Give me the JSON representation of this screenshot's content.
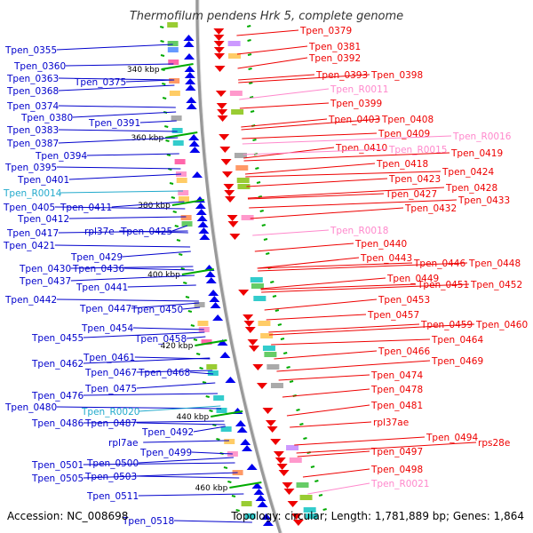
{
  "title": "Thermofilum pendens Hrk 5, complete genome",
  "accession": "Accession: NC_008698",
  "topology": "Topology: circular; Length: 1,781,889 bp; Genes: 1,864",
  "colors": {
    "forward_label": "#0000cc",
    "reverse_label": "#ee0000",
    "rna_label": "#ff88cc",
    "trna_label": "#22aacc",
    "backbone": "#999999",
    "kbp_tick": "#00aa00"
  },
  "kbp_marks": [
    "340 kbp",
    "360 kbp",
    "380 kbp",
    "400 kbp",
    "420 kbp",
    "440 kbp",
    "460 kbp"
  ],
  "left_labels": [
    "Tpen_0355",
    "Tpen_0360",
    "Tpen_0363",
    "Tpen_0368",
    "Tpen_0375",
    "Tpen_0374",
    "Tpen_0380",
    "Tpen_0391",
    "Tpen_0383",
    "Tpen_0387",
    "Tpen_0394",
    "Tpen_0395",
    "Tpen_0401",
    "Tpen_R0014",
    "Tpen_0405",
    "Tpen_0411",
    "Tpen_0412",
    "rpl37e",
    "Tpen_0425",
    "Tpen_0417",
    "Tpen_0421",
    "Tpen_0429",
    "Tpen_0430",
    "Tpen_0436",
    "Tpen_0437",
    "Tpen_0441",
    "Tpen_0442",
    "Tpen_0447",
    "Tpen_0450",
    "Tpen_0454",
    "Tpen_0455",
    "Tpen_0458",
    "Tpen_0461",
    "Tpen_0462",
    "Tpen_0467",
    "Tpen_0468",
    "Tpen_0475",
    "Tpen_0476",
    "Tpen_0480",
    "Tpen_R0020",
    "Tpen_0486",
    "Tpen_0487",
    "Tpen_0492",
    "rpl7ae",
    "Tpen_0499",
    "Tpen_0500",
    "Tpen_0501",
    "Tpen_0503",
    "Tpen_0505",
    "Tpen_0511",
    "Tpen_0518"
  ],
  "right_labels": [
    "Tpen_0379",
    "Tpen_0381",
    "Tpen_0392",
    "Tpen_0393",
    "Tpen_0398",
    "Tpen_R0011",
    "Tpen_0399",
    "Tpen_0403",
    "Tpen_0408",
    "Tpen_0409",
    "Tpen_R0016",
    "Tpen_0410",
    "Tpen_R0015",
    "Tpen_0419",
    "Tpen_0418",
    "Tpen_0424",
    "Tpen_0423",
    "Tpen_0428",
    "Tpen_0427",
    "Tpen_0433",
    "Tpen_0432",
    "Tpen_R0018",
    "Tpen_0440",
    "Tpen_0443",
    "Tpen_0446",
    "Tpen_0448",
    "Tpen_0449",
    "Tpen_0451",
    "Tpen_0452",
    "Tpen_0453",
    "Tpen_0457",
    "Tpen_0459",
    "Tpen_0460",
    "Tpen_0464",
    "Tpen_0466",
    "Tpen_0469",
    "Tpen_0474",
    "Tpen_0478",
    "Tpen_0481",
    "rpl37ae",
    "Tpen_0494",
    "rps28e",
    "Tpen_0497",
    "Tpen_0498",
    "Tpen_R0021"
  ],
  "rna_labels": [
    "Tpen_R0011",
    "Tpen_R0016",
    "Tpen_R0015",
    "Tpen_R0018",
    "Tpen_R0021"
  ],
  "trna_labels": [
    "Tpen_R0014",
    "Tpen_R0020"
  ]
}
